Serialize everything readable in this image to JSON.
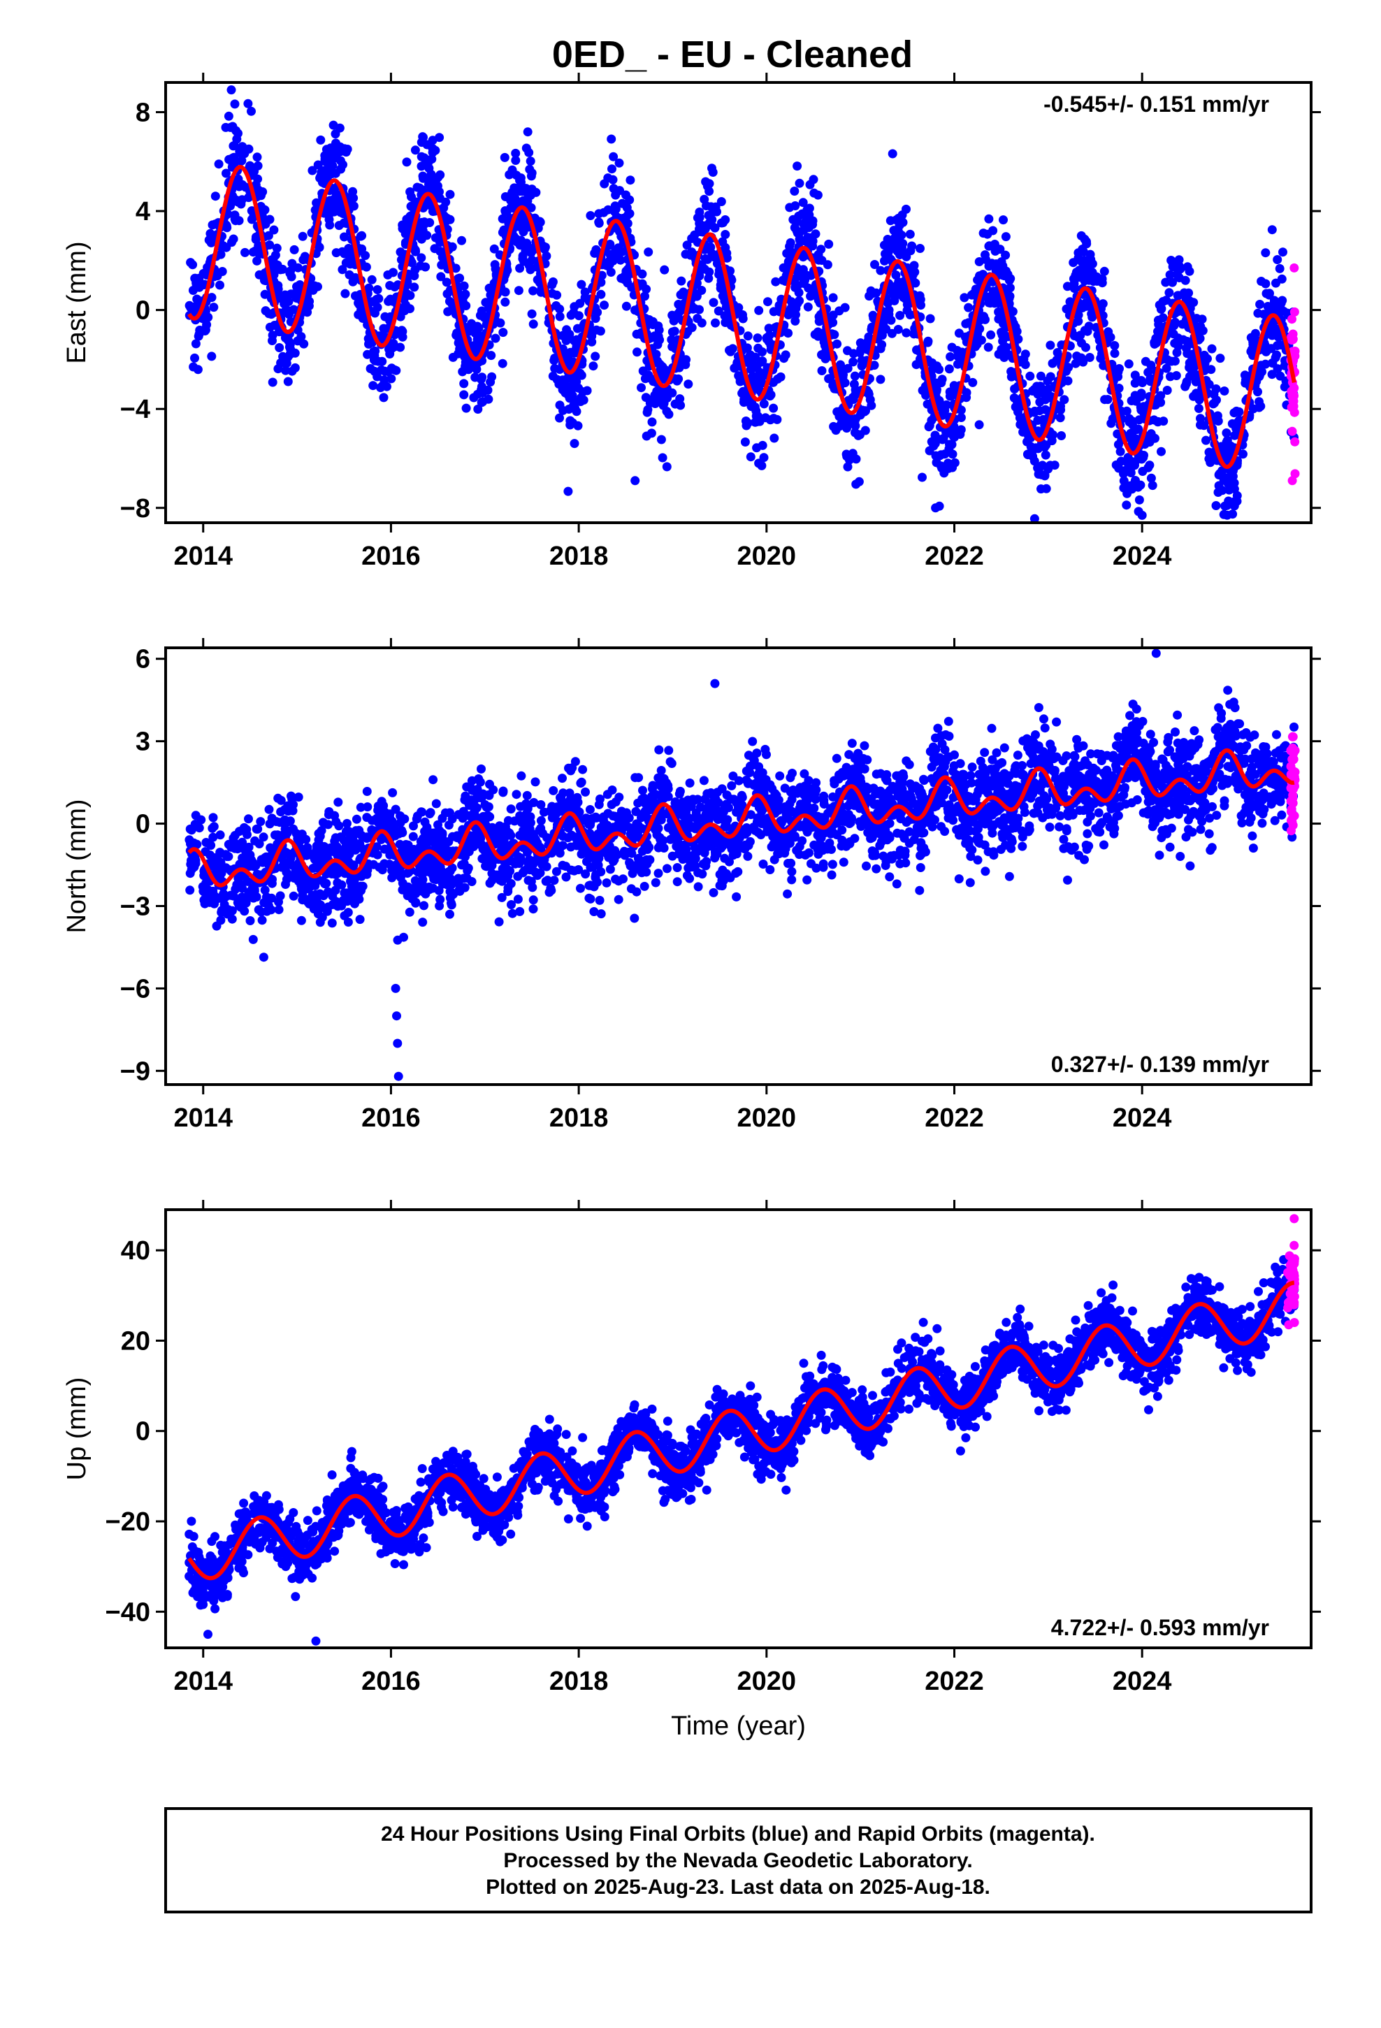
{
  "title": "0ED_  - EU - Cleaned",
  "footer": {
    "line1": "24 Hour Positions Using Final Orbits (blue) and Rapid Orbits (magenta).",
    "line2": "Processed by the Nevada Geodetic Laboratory.",
    "line3": "Plotted on 2025-Aug-23. Last data on 2025-Aug-18."
  },
  "colors": {
    "final": "#0000ff",
    "rapid": "#ff00ff",
    "model": "#ff0000"
  },
  "chart_data": [
    {
      "type": "scatter",
      "component": "east",
      "ylabel": "East (mm)",
      "rate_text": "-0.545+/- 0.151 mm/yr",
      "rate_position": "top-right",
      "xlim": [
        2013.6,
        2025.8
      ],
      "ylim": [
        -8.6,
        9.2
      ],
      "yticks": [
        -8,
        -4,
        0,
        4,
        8
      ],
      "ytick_labels": [
        "−8",
        "−4",
        "0",
        "4",
        "8"
      ],
      "xticks": [
        2014,
        2016,
        2018,
        2020,
        2022,
        2024
      ],
      "xtick_labels": [
        "2014",
        "2016",
        "2018",
        "2020",
        "2022",
        "2024"
      ],
      "data_span": [
        2013.85,
        2025.62
      ],
      "rapid_span": [
        2025.58,
        2025.63
      ],
      "model": {
        "offset_at_2014": 2.8,
        "trend": -0.545,
        "annual_amp": 3.2,
        "annual_peak": 0.4,
        "semiannual_amp": 0.0
      },
      "scatter_sd": 1.25,
      "outliers": [
        [
          2014.3,
          8.9
        ],
        [
          2018.6,
          -6.9
        ],
        [
          2021.8,
          -8.0
        ],
        [
          2024.0,
          -8.3
        ],
        [
          2025.6,
          -6.9
        ],
        [
          2025.62,
          1.7
        ]
      ]
    },
    {
      "type": "scatter",
      "component": "north",
      "ylabel": "North (mm)",
      "rate_text": "0.327+/- 0.139 mm/yr",
      "rate_position": "bottom-right",
      "xlim": [
        2013.6,
        2025.8
      ],
      "ylim": [
        -9.5,
        6.4
      ],
      "yticks": [
        -9,
        -6,
        -3,
        0,
        3,
        6
      ],
      "ytick_labels": [
        "−9",
        "−6",
        "−3",
        "0",
        "3",
        "6"
      ],
      "xticks": [
        2014,
        2016,
        2018,
        2020,
        2022,
        2024
      ],
      "xtick_labels": [
        "2014",
        "2016",
        "2018",
        "2020",
        "2022",
        "2024"
      ],
      "data_span": [
        2013.85,
        2025.62
      ],
      "rapid_span": [
        2025.58,
        2025.63
      ],
      "model": {
        "offset_at_2014": -1.8,
        "trend": 0.327,
        "annual_amp": 0.45,
        "annual_peak": 0.9,
        "semiannual_amp": 0.45
      },
      "scatter_sd": 0.9,
      "outliers": [
        [
          2016.05,
          -6.0
        ],
        [
          2016.06,
          -7.0
        ],
        [
          2016.07,
          -8.0
        ],
        [
          2016.08,
          -9.2
        ],
        [
          2019.45,
          5.1
        ],
        [
          2024.15,
          6.2
        ]
      ]
    },
    {
      "type": "scatter",
      "component": "up",
      "ylabel": "Up (mm)",
      "rate_text": "4.722+/- 0.593 mm/yr",
      "rate_position": "bottom-right",
      "xlim": [
        2013.6,
        2025.8
      ],
      "ylim": [
        -48,
        49
      ],
      "yticks": [
        -40,
        -20,
        0,
        20,
        40
      ],
      "ytick_labels": [
        "−40",
        "−20",
        "0",
        "20",
        "40"
      ],
      "xticks": [
        2014,
        2016,
        2018,
        2020,
        2022,
        2024
      ],
      "xtick_labels": [
        "2014",
        "2016",
        "2018",
        "2020",
        "2022",
        "2024"
      ],
      "xlabel": "Time (year)",
      "data_span": [
        2013.85,
        2025.62
      ],
      "rapid_span": [
        2025.55,
        2025.63
      ],
      "model": {
        "offset_at_2014": -27.5,
        "trend": 4.722,
        "annual_amp": 5.5,
        "annual_peak": 0.6,
        "semiannual_amp": 0.0
      },
      "scatter_sd": 3.2,
      "outliers": [
        [
          2014.05,
          -45.0
        ],
        [
          2015.2,
          -46.5
        ],
        [
          2025.62,
          47.0
        ]
      ]
    }
  ]
}
